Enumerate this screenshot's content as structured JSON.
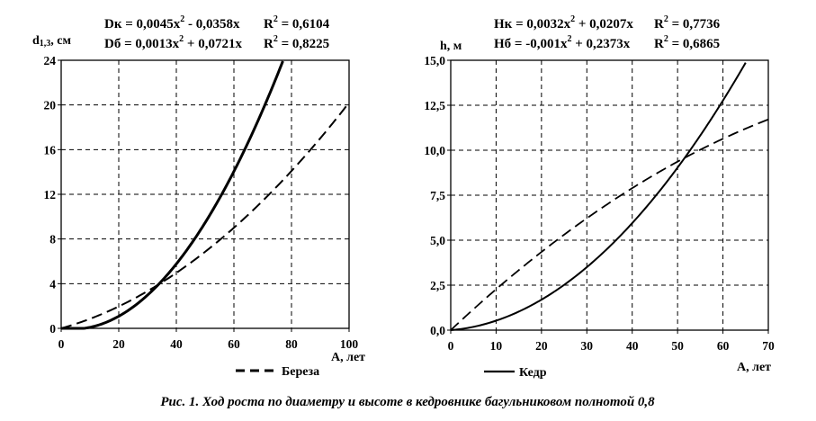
{
  "caption": "Рис. 1. Ход роста по диаметру и высоте в кедровнике багульниковом полнотой 0,8",
  "chart_data": [
    {
      "type": "line",
      "ylabel_main": "d",
      "ylabel_sub": "1,3",
      "ylabel_unit": ", см",
      "xlabel": "А, лет",
      "xlim": [
        0,
        100
      ],
      "ylim": [
        0,
        24
      ],
      "xticks": [
        0,
        20,
        40,
        60,
        80,
        100
      ],
      "yticks": [
        0,
        4,
        8,
        12,
        16,
        20,
        24
      ],
      "xtick_labels": [
        "0",
        "20",
        "40",
        "60",
        "80",
        "100"
      ],
      "ytick_labels": [
        "0",
        "4",
        "8",
        "12",
        "16",
        "20",
        "24"
      ],
      "equations": [
        {
          "label": "Dк",
          "p1": " = 0,0045x",
          "exp": "2",
          "p2": " - 0,0358x",
          "r_label": "R",
          "r_exp": "2",
          "r_value": " = 0,6104"
        },
        {
          "label": "Dб",
          "p1": " = 0,0013x",
          "exp": "2",
          "p2": " + 0,0721x",
          "r_label": "R",
          "r_exp": "2",
          "r_value": " = 0,8225"
        }
      ],
      "series": [
        {
          "name": "Кедр",
          "style": "solid",
          "a": 0.0045,
          "b": -0.0358,
          "x": [
            0,
            10,
            20,
            30,
            40,
            50,
            60,
            70,
            77
          ],
          "values": [
            0.0,
            0.09,
            1.08,
            2.98,
            5.77,
            9.46,
            14.05,
            19.54,
            23.92
          ]
        },
        {
          "name": "Береза",
          "style": "dashed",
          "a": 0.0013,
          "b": 0.0721,
          "x": [
            0,
            10,
            20,
            30,
            40,
            50,
            60,
            70,
            80,
            90,
            100
          ],
          "values": [
            0.0,
            0.85,
            1.96,
            3.33,
            4.96,
            6.86,
            9.01,
            11.42,
            14.09,
            17.02,
            20.21
          ]
        }
      ],
      "legend": [
        {
          "name": "Береза",
          "style": "dashed"
        }
      ]
    },
    {
      "type": "line",
      "ylabel_main": "h",
      "ylabel_sub": "",
      "ylabel_unit": ", м",
      "xlabel": "А, лет",
      "xlim": [
        0,
        70
      ],
      "ylim": [
        0,
        15
      ],
      "xticks": [
        0,
        10,
        20,
        30,
        40,
        50,
        60,
        70
      ],
      "yticks": [
        0,
        2.5,
        5,
        7.5,
        10,
        12.5,
        15
      ],
      "xtick_labels": [
        "0",
        "10",
        "20",
        "30",
        "40",
        "50",
        "60",
        "70"
      ],
      "ytick_labels": [
        "0,0",
        "2,5",
        "5,0",
        "7,5",
        "10,0",
        "12,5",
        "15,0"
      ],
      "equations": [
        {
          "label": "Hк",
          "p1": " = 0,0032x",
          "exp": "2",
          "p2": " + 0,0207x",
          "r_label": "R",
          "r_exp": "2",
          "r_value": " = 0,7736"
        },
        {
          "label": "Hб",
          "p1": " = -0,001x",
          "exp": "2",
          "p2": " + 0,2373x",
          "r_label": "R",
          "r_exp": "2",
          "r_value": " = 0,6865"
        }
      ],
      "series": [
        {
          "name": "Кедр",
          "style": "solid",
          "a": 0.0032,
          "b": 0.0207,
          "x": [
            0,
            10,
            20,
            30,
            40,
            50,
            60,
            65
          ],
          "values": [
            0.0,
            0.53,
            1.69,
            3.5,
            5.95,
            9.04,
            12.76,
            14.87
          ]
        },
        {
          "name": "Береза",
          "style": "dashed",
          "a": -0.001,
          "b": 0.2373,
          "x": [
            0,
            10,
            20,
            30,
            40,
            50,
            60,
            70
          ],
          "values": [
            0.0,
            2.27,
            4.35,
            6.22,
            7.89,
            9.37,
            10.64,
            11.71
          ]
        }
      ],
      "legend": [
        {
          "name": "Кедр",
          "style": "solid"
        }
      ]
    }
  ]
}
